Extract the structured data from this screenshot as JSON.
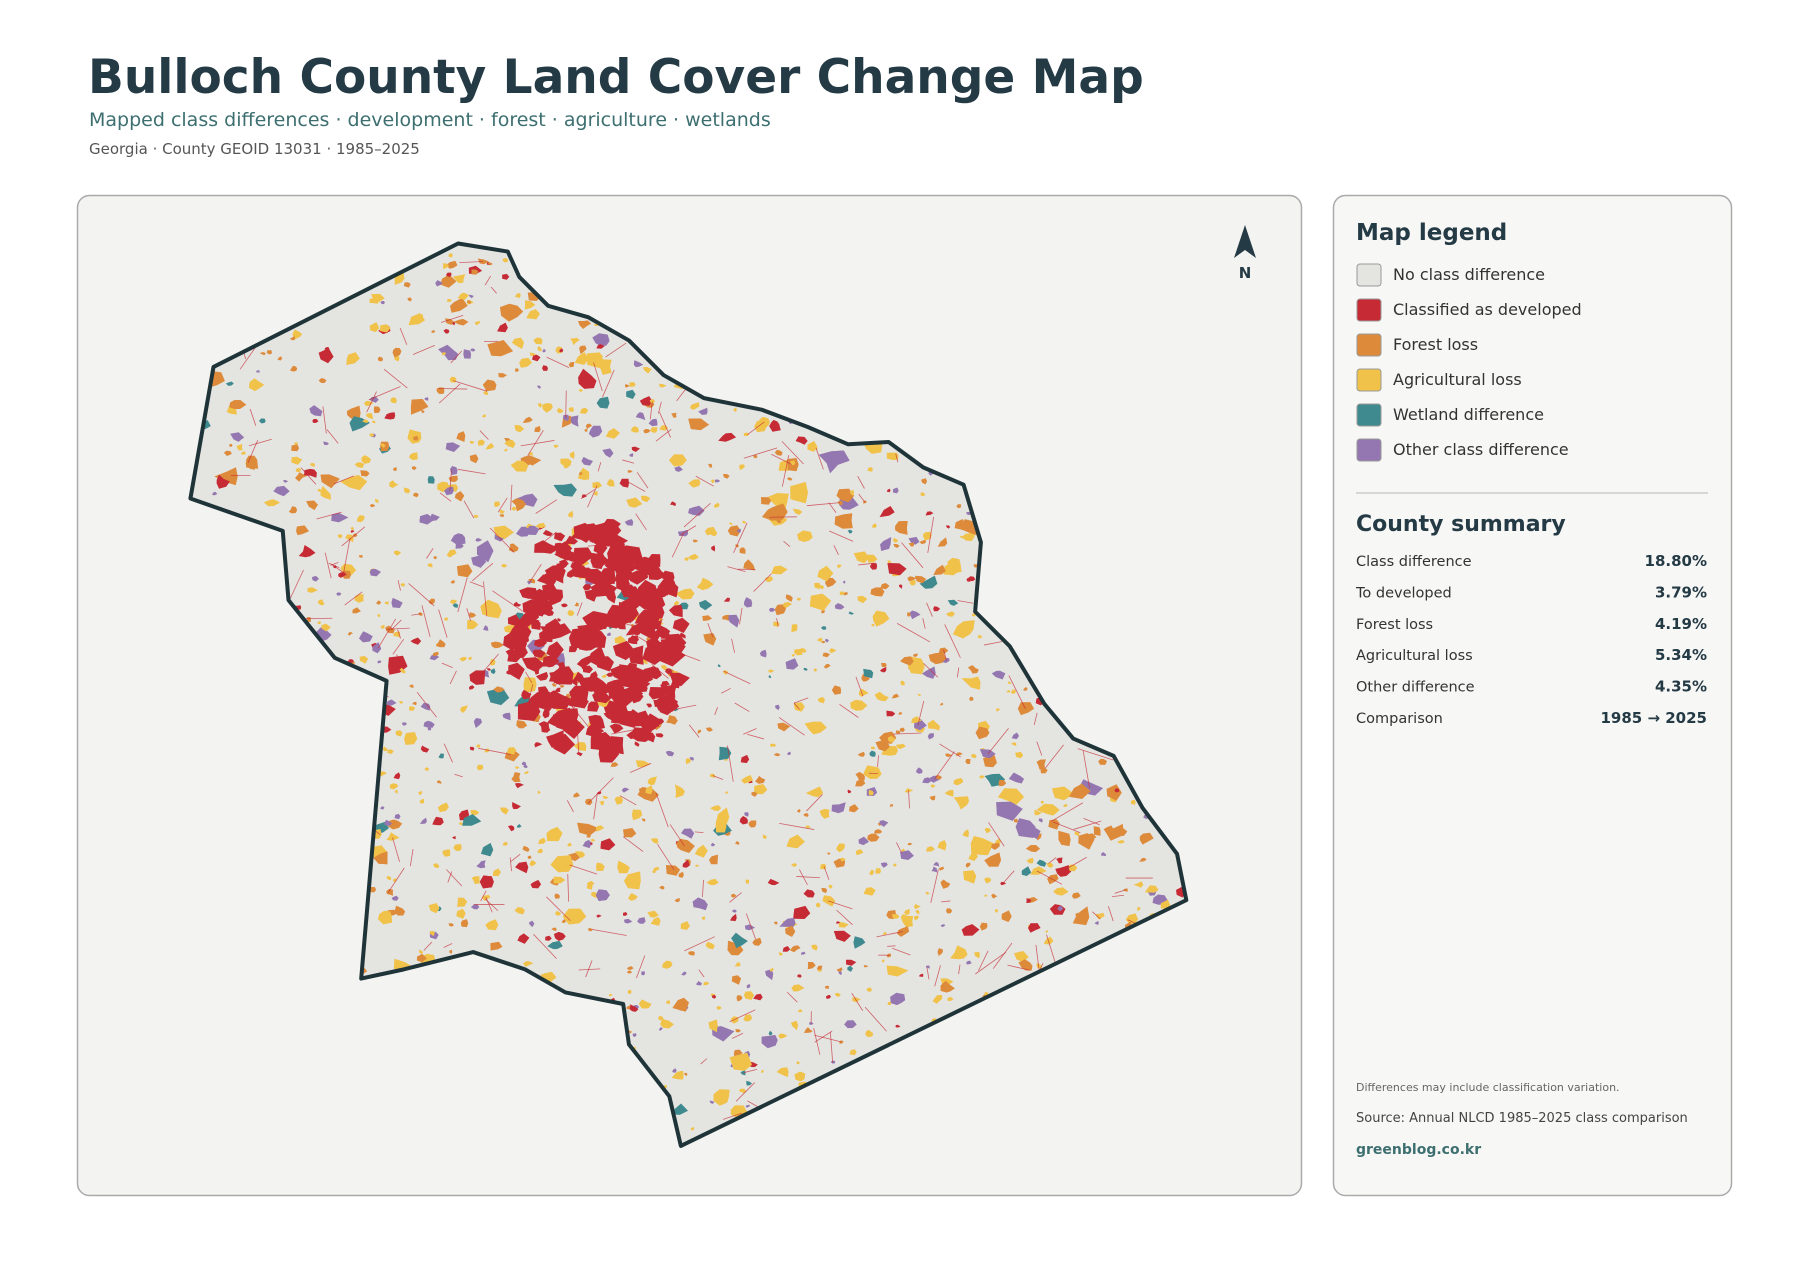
{
  "header": {
    "title": "Bulloch County Land Cover Change Map",
    "subtitle": "Mapped class differences · development · forest · agriculture · wetlands",
    "meta": "Georgia · County GEOID 13031 · 1985–2025"
  },
  "map": {
    "north_label": "N"
  },
  "legend": {
    "title": "Map legend",
    "items": [
      {
        "label": "No class difference",
        "color": "#e4e4e0"
      },
      {
        "label": "Classified as developed",
        "color": "#c62a35"
      },
      {
        "label": "Forest loss",
        "color": "#dd8a3a"
      },
      {
        "label": "Agricultural loss",
        "color": "#f0c24a"
      },
      {
        "label": "Wetland difference",
        "color": "#3f8a8f"
      },
      {
        "label": "Other class difference",
        "color": "#9477b0"
      }
    ]
  },
  "summary": {
    "title": "County summary",
    "rows": [
      [
        "Class difference",
        "18.80%"
      ],
      [
        "To developed",
        "3.79%"
      ],
      [
        "Forest loss",
        "4.19%"
      ],
      [
        "Agricultural loss",
        "5.34%"
      ],
      [
        "Other difference",
        "4.35%"
      ],
      [
        "Comparison",
        "1985 → 2025"
      ]
    ]
  },
  "footer": {
    "note": "Differences may include classification variation.",
    "source": "Source: Annual NLCD 1985–2025 class comparison",
    "site": "greenblog.co.kr"
  }
}
